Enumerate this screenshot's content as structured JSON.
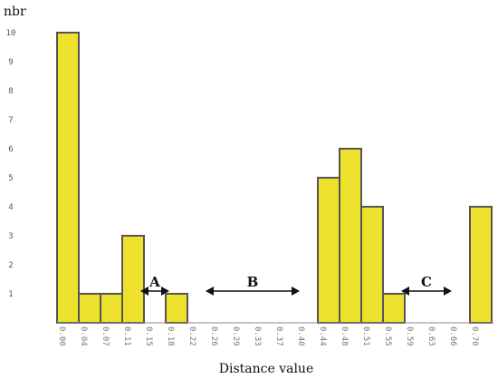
{
  "chart_data": {
    "type": "bar",
    "title": "",
    "xlabel": "Distance value",
    "ylabel": "nbr",
    "ylim": [
      0,
      10
    ],
    "yticks": [
      1,
      2,
      3,
      4,
      5,
      6,
      7,
      8,
      9,
      10
    ],
    "categories": [
      "0.00",
      "0.04",
      "0.07",
      "0.11",
      "0.15",
      "0.18",
      "0.22",
      "0.26",
      "0.29",
      "0.33",
      "0.37",
      "0.40",
      "0.44",
      "0.48",
      "0.51",
      "0.55",
      "0.59",
      "0.63",
      "0.66",
      "0.70"
    ],
    "values": [
      10,
      1,
      1,
      3,
      0,
      1,
      0,
      0,
      0,
      0,
      0,
      0,
      5,
      6,
      4,
      1,
      0,
      0,
      0,
      4
    ],
    "bar_color": "#eee22e",
    "bar_edge_color": "#555555",
    "grid": false,
    "annotations": [
      {
        "label": "A",
        "from": "0.15",
        "to": "0.18"
      },
      {
        "label": "B",
        "from": "0.26",
        "to": "0.40"
      },
      {
        "label": "C",
        "from": "0.59",
        "to": "0.66"
      }
    ]
  }
}
